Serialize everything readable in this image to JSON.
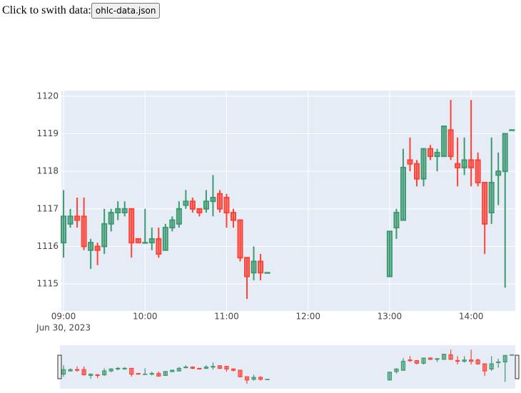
{
  "controls": {
    "label": "Click to swith data:",
    "button": "ohlc-data.json"
  },
  "chart_data": {
    "type": "candlestick",
    "x": [
      "2023-06-30 09:00",
      "2023-06-30 09:05",
      "2023-06-30 09:10",
      "2023-06-30 09:15",
      "2023-06-30 09:20",
      "2023-06-30 09:25",
      "2023-06-30 09:30",
      "2023-06-30 09:35",
      "2023-06-30 09:40",
      "2023-06-30 09:45",
      "2023-06-30 09:50",
      "2023-06-30 09:55",
      "2023-06-30 10:00",
      "2023-06-30 10:05",
      "2023-06-30 10:10",
      "2023-06-30 10:15",
      "2023-06-30 10:20",
      "2023-06-30 10:25",
      "2023-06-30 10:30",
      "2023-06-30 10:35",
      "2023-06-30 10:40",
      "2023-06-30 10:45",
      "2023-06-30 10:50",
      "2023-06-30 10:55",
      "2023-06-30 11:00",
      "2023-06-30 11:05",
      "2023-06-30 11:10",
      "2023-06-30 11:15",
      "2023-06-30 11:20",
      "2023-06-30 11:25",
      "2023-06-30 11:30",
      "2023-06-30 13:00",
      "2023-06-30 13:05",
      "2023-06-30 13:10",
      "2023-06-30 13:15",
      "2023-06-30 13:20",
      "2023-06-30 13:25",
      "2023-06-30 13:30",
      "2023-06-30 13:35",
      "2023-06-30 13:40",
      "2023-06-30 13:45",
      "2023-06-30 13:50",
      "2023-06-30 13:55",
      "2023-06-30 14:00",
      "2023-06-30 14:05",
      "2023-06-30 14:10",
      "2023-06-30 14:15",
      "2023-06-30 14:20",
      "2023-06-30 14:25",
      "2023-06-30 14:30"
    ],
    "open": [
      1116.1,
      1116.6,
      1116.8,
      1116.8,
      1115.9,
      1116.0,
      1116.0,
      1116.6,
      1116.9,
      1116.9,
      1117.0,
      1116.2,
      1116.1,
      1116.1,
      1116.2,
      1115.9,
      1116.5,
      1116.6,
      1117.1,
      1117.2,
      1117.0,
      1117.0,
      1117.2,
      1117.4,
      1117.3,
      1116.9,
      1116.7,
      1115.7,
      1115.3,
      1115.6,
      1115.3,
      1115.2,
      1116.5,
      1116.7,
      1118.3,
      1118.2,
      1117.8,
      1118.6,
      1118.4,
      1118.4,
      1119.1,
      1118.2,
      1118.1,
      1118.3,
      1118.3,
      1117.7,
      1116.9,
      1117.9,
      1118.0,
      1119.1
    ],
    "high": [
      1117.5,
      1117.0,
      1117.3,
      1117.3,
      1116.2,
      1116.1,
      1117.0,
      1117.0,
      1117.2,
      1117.2,
      1117.0,
      1116.2,
      1117.0,
      1116.5,
      1116.5,
      1116.6,
      1116.8,
      1117.2,
      1117.5,
      1117.3,
      1117.0,
      1117.5,
      1117.9,
      1117.5,
      1117.4,
      1117.0,
      1116.7,
      1115.7,
      1116.0,
      1115.8,
      1115.3,
      1116.4,
      1117.0,
      1118.6,
      1118.9,
      1118.3,
      1118.6,
      1118.7,
      1118.6,
      1119.2,
      1119.9,
      1118.9,
      1118.9,
      1119.9,
      1118.5,
      1117.7,
      1118.9,
      1118.5,
      1119.0,
      1119.1
    ],
    "low": [
      1115.7,
      1116.5,
      1116.5,
      1115.9,
      1115.4,
      1115.5,
      1115.8,
      1116.4,
      1116.7,
      1116.8,
      1115.7,
      1116.1,
      1116.1,
      1115.9,
      1115.7,
      1115.9,
      1116.4,
      1116.5,
      1117.0,
      1116.9,
      1116.8,
      1116.9,
      1116.8,
      1116.9,
      1116.5,
      1116.5,
      1115.6,
      1114.6,
      1115.1,
      1115.1,
      1115.3,
      1115.2,
      1116.2,
      1116.7,
      1118.0,
      1117.6,
      1117.6,
      1118.3,
      1118.0,
      1118.4,
      1118.3,
      1117.6,
      1117.9,
      1117.6,
      1117.6,
      1115.8,
      1116.6,
      1117.1,
      1114.9,
      1119.1
    ],
    "close": [
      1116.8,
      1116.8,
      1116.7,
      1116.0,
      1116.1,
      1115.9,
      1116.6,
      1116.9,
      1117.0,
      1117.0,
      1116.1,
      1116.1,
      1116.1,
      1116.2,
      1115.8,
      1116.5,
      1116.7,
      1117.0,
      1117.2,
      1117.0,
      1116.9,
      1117.2,
      1117.3,
      1117.0,
      1116.9,
      1116.7,
      1115.7,
      1115.2,
      1115.6,
      1115.3,
      1115.3,
      1116.4,
      1116.9,
      1118.1,
      1118.2,
      1117.8,
      1118.6,
      1118.4,
      1118.5,
      1119.2,
      1118.4,
      1118.1,
      1118.3,
      1118.1,
      1117.7,
      1116.6,
      1117.7,
      1118.0,
      1119.0,
      1119.1
    ],
    "increasing_color": "#3D9970",
    "decreasing_color": "#FF4136",
    "xlim": [
      "2023-06-30 08:58:24",
      "2023-06-30 14:32:30"
    ],
    "xticks": [
      {
        "value": "2023-06-30 09:00",
        "label": "09:00"
      },
      {
        "value": "2023-06-30 10:00",
        "label": "10:00"
      },
      {
        "value": "2023-06-30 11:00",
        "label": "11:00"
      },
      {
        "value": "2023-06-30 12:00",
        "label": "12:00"
      },
      {
        "value": "2023-06-30 13:00",
        "label": "13:00"
      },
      {
        "value": "2023-06-30 14:00",
        "label": "14:00"
      }
    ],
    "xdate": "Jun 30, 2023",
    "ylim": [
      1114.28,
      1120.15
    ],
    "yticks": [
      1115,
      1116,
      1117,
      1118,
      1119,
      1120
    ],
    "grid": true,
    "rangeslider": true
  }
}
